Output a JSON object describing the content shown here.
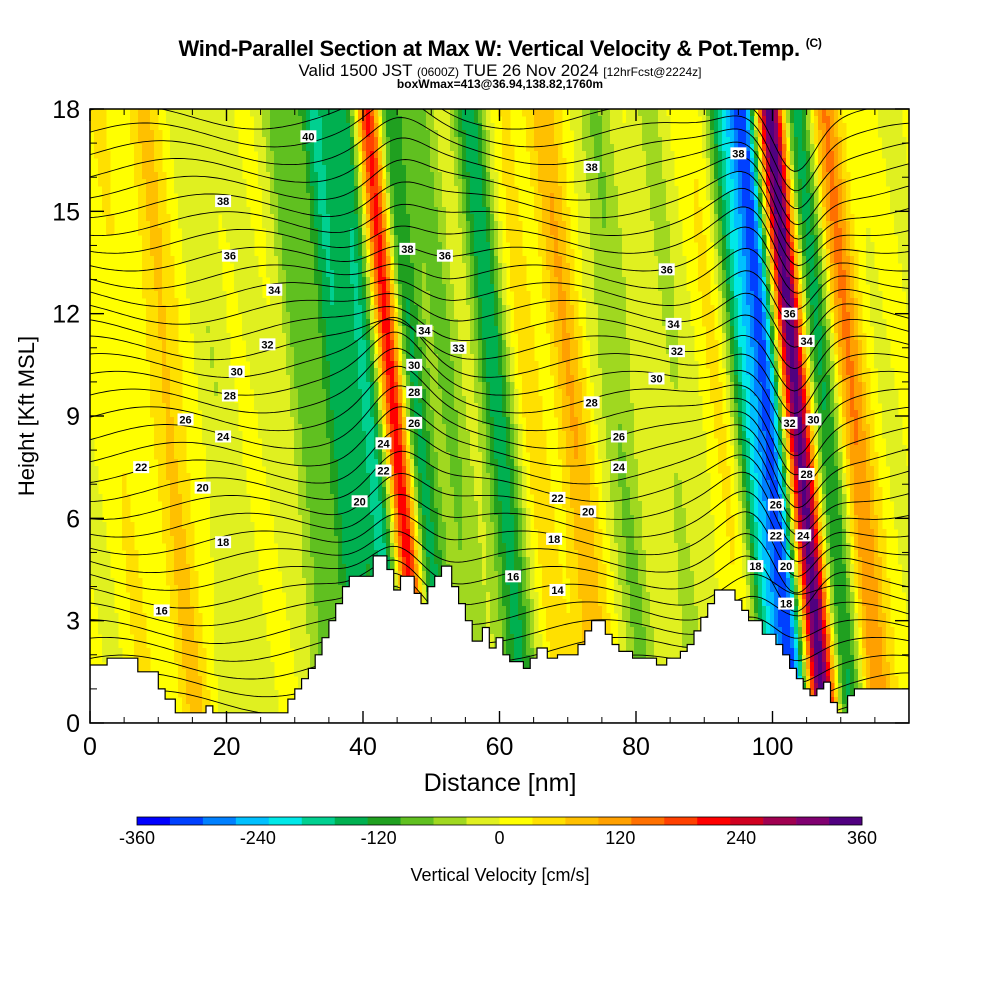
{
  "title": {
    "main": "Wind-Parallel Section at Max W: Vertical Velocity & Pot.Temp.",
    "main_suffix": "(C)",
    "valid_prefix": "Valid 1500 JST",
    "valid_utc": "(0600Z)",
    "valid_date": "TUE 26 Nov 2024",
    "forecast": "[12hrFcst@2224z]",
    "box_info": "boxWmax=413@36.94,138.82,1760m"
  },
  "chart_data": {
    "type": "heatmap",
    "xlabel": "Distance [nm]",
    "ylabel": "Height [Kft MSL]",
    "xlim": [
      0,
      120
    ],
    "ylim": [
      0,
      18
    ],
    "x_ticks": [
      0,
      20,
      40,
      60,
      80,
      100
    ],
    "y_ticks": [
      0,
      3,
      6,
      9,
      12,
      15,
      18
    ],
    "colorbar": {
      "label": "Vertical Velocity [cm/s]",
      "ticks": [
        -360,
        -240,
        -120,
        0,
        120,
        240,
        360
      ],
      "min": -360,
      "max": 360,
      "colors": [
        "#0000ff",
        "#0040ff",
        "#0080ff",
        "#00c0ff",
        "#00e8e8",
        "#00d090",
        "#00b050",
        "#20a020",
        "#60c020",
        "#a0d820",
        "#e0f020",
        "#ffff00",
        "#ffe000",
        "#ffc000",
        "#ffa000",
        "#ff7000",
        "#ff4000",
        "#ff0000",
        "#d00020",
        "#a00050",
        "#800070",
        "#500080"
      ]
    },
    "vertical_velocity_cores": [
      {
        "x": 6,
        "w": 35
      },
      {
        "x": 13,
        "w": 75
      },
      {
        "x": 20,
        "w": -25
      },
      {
        "x": 33,
        "w": -85
      },
      {
        "x": 38,
        "w": -160
      },
      {
        "x": 42.5,
        "w": -170
      },
      {
        "x": 46,
        "w": 260
      },
      {
        "x": 49,
        "w": -150
      },
      {
        "x": 54,
        "w": -70
      },
      {
        "x": 61,
        "w": -150
      },
      {
        "x": 66,
        "w": 45
      },
      {
        "x": 72,
        "w": 95
      },
      {
        "x": 79,
        "w": -70
      },
      {
        "x": 87,
        "w": -40
      },
      {
        "x": 94,
        "w": 40
      },
      {
        "x": 98,
        "w": -190
      },
      {
        "x": 101,
        "w": -270
      },
      {
        "x": 105,
        "w": 360
      },
      {
        "x": 109,
        "w": -150
      },
      {
        "x": 113,
        "w": 140
      }
    ],
    "theta_contour_labels": [
      {
        "text": "40",
        "x": 32,
        "y": 17.2
      },
      {
        "text": "38",
        "x": 19.5,
        "y": 15.3
      },
      {
        "text": "38",
        "x": 73.5,
        "y": 16.3
      },
      {
        "text": "38",
        "x": 95,
        "y": 16.7
      },
      {
        "text": "38",
        "x": 46.5,
        "y": 13.9
      },
      {
        "text": "36",
        "x": 20.5,
        "y": 13.7
      },
      {
        "text": "36",
        "x": 52,
        "y": 13.7
      },
      {
        "text": "36",
        "x": 84.5,
        "y": 13.3
      },
      {
        "text": "36",
        "x": 102.5,
        "y": 12
      },
      {
        "text": "34",
        "x": 27,
        "y": 12.7
      },
      {
        "text": "34",
        "x": 49,
        "y": 11.5
      },
      {
        "text": "34",
        "x": 85.5,
        "y": 11.7
      },
      {
        "text": "34",
        "x": 105,
        "y": 11.2
      },
      {
        "text": "33",
        "x": 54,
        "y": 11
      },
      {
        "text": "32",
        "x": 26,
        "y": 11.1
      },
      {
        "text": "32",
        "x": 86,
        "y": 10.9
      },
      {
        "text": "32",
        "x": 102.5,
        "y": 8.8
      },
      {
        "text": "30",
        "x": 21.5,
        "y": 10.3
      },
      {
        "text": "30",
        "x": 47.5,
        "y": 10.5
      },
      {
        "text": "30",
        "x": 83,
        "y": 10.1
      },
      {
        "text": "30",
        "x": 106,
        "y": 8.9
      },
      {
        "text": "28",
        "x": 20.5,
        "y": 9.6
      },
      {
        "text": "28",
        "x": 47.5,
        "y": 9.7
      },
      {
        "text": "28",
        "x": 73.5,
        "y": 9.4
      },
      {
        "text": "28",
        "x": 105,
        "y": 7.3
      },
      {
        "text": "26",
        "x": 14,
        "y": 8.9
      },
      {
        "text": "26",
        "x": 47.5,
        "y": 8.8
      },
      {
        "text": "26",
        "x": 77.5,
        "y": 8.4
      },
      {
        "text": "26",
        "x": 100.5,
        "y": 6.4
      },
      {
        "text": "24",
        "x": 19.5,
        "y": 8.4
      },
      {
        "text": "24",
        "x": 43,
        "y": 8.2
      },
      {
        "text": "24",
        "x": 77.5,
        "y": 7.5
      },
      {
        "text": "24",
        "x": 104.5,
        "y": 5.5
      },
      {
        "text": "22",
        "x": 7.5,
        "y": 7.5
      },
      {
        "text": "22",
        "x": 43,
        "y": 7.4
      },
      {
        "text": "22",
        "x": 68.5,
        "y": 6.6
      },
      {
        "text": "22",
        "x": 100.5,
        "y": 5.5
      },
      {
        "text": "20",
        "x": 16.5,
        "y": 6.9
      },
      {
        "text": "20",
        "x": 39.5,
        "y": 6.5
      },
      {
        "text": "20",
        "x": 73,
        "y": 6.2
      },
      {
        "text": "20",
        "x": 102,
        "y": 4.6
      },
      {
        "text": "18",
        "x": 19.5,
        "y": 5.3
      },
      {
        "text": "18",
        "x": 68,
        "y": 5.4
      },
      {
        "text": "18",
        "x": 97.5,
        "y": 4.6
      },
      {
        "text": "18",
        "x": 102,
        "y": 3.5
      },
      {
        "text": "16",
        "x": 10.5,
        "y": 3.3
      },
      {
        "text": "16",
        "x": 62,
        "y": 4.3
      },
      {
        "text": "14",
        "x": 68.5,
        "y": 3.9
      }
    ],
    "terrain": [
      [
        0,
        1.7
      ],
      [
        2.5,
        1.7
      ],
      [
        2.5,
        1.9
      ],
      [
        7,
        1.9
      ],
      [
        7,
        1.5
      ],
      [
        10,
        1.5
      ],
      [
        10,
        1.0
      ],
      [
        11,
        1.0
      ],
      [
        11,
        0.7
      ],
      [
        12.5,
        0.7
      ],
      [
        12.5,
        0.3
      ],
      [
        17,
        0.3
      ],
      [
        17,
        0.5
      ],
      [
        18,
        0.5
      ],
      [
        18,
        0.3
      ],
      [
        29,
        0.3
      ],
      [
        29,
        0.7
      ],
      [
        30,
        0.7
      ],
      [
        30,
        1.0
      ],
      [
        31,
        1.0
      ],
      [
        31,
        1.3
      ],
      [
        32,
        1.3
      ],
      [
        32,
        1.6
      ],
      [
        33,
        1.6
      ],
      [
        33,
        2.0
      ],
      [
        34,
        2.0
      ],
      [
        34,
        2.5
      ],
      [
        35,
        2.5
      ],
      [
        35,
        3.0
      ],
      [
        36,
        3.0
      ],
      [
        36,
        3.5
      ],
      [
        37,
        3.5
      ],
      [
        37,
        4.0
      ],
      [
        38,
        4.0
      ],
      [
        38,
        4.3
      ],
      [
        41.5,
        4.3
      ],
      [
        41.5,
        4.9
      ],
      [
        43.5,
        4.9
      ],
      [
        43.5,
        4.5
      ],
      [
        44.5,
        4.5
      ],
      [
        44.5,
        3.9
      ],
      [
        45.5,
        3.9
      ],
      [
        45.5,
        4.3
      ],
      [
        47.5,
        4.3
      ],
      [
        47.5,
        3.8
      ],
      [
        48.5,
        3.8
      ],
      [
        48.5,
        3.5
      ],
      [
        49.5,
        3.5
      ],
      [
        49.5,
        4.0
      ],
      [
        50.5,
        4.0
      ],
      [
        50.5,
        4.3
      ],
      [
        51.5,
        4.3
      ],
      [
        51.5,
        4.6
      ],
      [
        53,
        4.6
      ],
      [
        53,
        4.0
      ],
      [
        54,
        4.0
      ],
      [
        54,
        3.5
      ],
      [
        55,
        3.5
      ],
      [
        55,
        3.0
      ],
      [
        56,
        3.0
      ],
      [
        56,
        2.4
      ],
      [
        57.5,
        2.4
      ],
      [
        57.5,
        2.8
      ],
      [
        58.5,
        2.8
      ],
      [
        58.5,
        2.2
      ],
      [
        59.5,
        2.2
      ],
      [
        59.5,
        2.5
      ],
      [
        60.5,
        2.5
      ],
      [
        60.5,
        2.0
      ],
      [
        61.5,
        2.0
      ],
      [
        61.5,
        1.8
      ],
      [
        63.5,
        1.8
      ],
      [
        63.5,
        1.6
      ],
      [
        64.5,
        1.6
      ],
      [
        64.5,
        1.9
      ],
      [
        65.5,
        1.9
      ],
      [
        65.5,
        2.2
      ],
      [
        67,
        2.2
      ],
      [
        67,
        1.9
      ],
      [
        68.5,
        1.9
      ],
      [
        68.5,
        2.0
      ],
      [
        71.5,
        2.0
      ],
      [
        71.5,
        2.3
      ],
      [
        72.5,
        2.3
      ],
      [
        72.5,
        2.7
      ],
      [
        73.5,
        2.7
      ],
      [
        73.5,
        3.0
      ],
      [
        75.5,
        3.0
      ],
      [
        75.5,
        2.6
      ],
      [
        76.5,
        2.6
      ],
      [
        76.5,
        2.3
      ],
      [
        77.5,
        2.3
      ],
      [
        77.5,
        2.1
      ],
      [
        79.5,
        2.1
      ],
      [
        79.5,
        1.9
      ],
      [
        83,
        1.9
      ],
      [
        83,
        1.7
      ],
      [
        84.5,
        1.7
      ],
      [
        84.5,
        1.9
      ],
      [
        86.5,
        1.9
      ],
      [
        86.5,
        2.1
      ],
      [
        87.5,
        2.1
      ],
      [
        87.5,
        2.3
      ],
      [
        88.5,
        2.3
      ],
      [
        88.5,
        2.7
      ],
      [
        89.5,
        2.7
      ],
      [
        89.5,
        3.1
      ],
      [
        90.5,
        3.1
      ],
      [
        90.5,
        3.5
      ],
      [
        91.5,
        3.5
      ],
      [
        91.5,
        3.9
      ],
      [
        94.5,
        3.9
      ],
      [
        94.5,
        3.6
      ],
      [
        95.5,
        3.6
      ],
      [
        95.5,
        3.3
      ],
      [
        96.5,
        3.3
      ],
      [
        96.5,
        3.0
      ],
      [
        98.5,
        3.0
      ],
      [
        98.5,
        2.6
      ],
      [
        100.5,
        2.6
      ],
      [
        100.5,
        2.3
      ],
      [
        101.5,
        2.3
      ],
      [
        101.5,
        2.0
      ],
      [
        102.5,
        2.0
      ],
      [
        102.5,
        1.6
      ],
      [
        103.5,
        1.6
      ],
      [
        103.5,
        1.3
      ],
      [
        104.5,
        1.3
      ],
      [
        104.5,
        1.0
      ],
      [
        105.5,
        1.0
      ],
      [
        105.5,
        0.8
      ],
      [
        106.5,
        0.8
      ],
      [
        106.5,
        1.0
      ],
      [
        107.5,
        1.0
      ],
      [
        107.5,
        1.2
      ],
      [
        108.5,
        1.2
      ],
      [
        108.5,
        0.6
      ],
      [
        109.5,
        0.6
      ],
      [
        109.5,
        0.3
      ],
      [
        111,
        0.3
      ],
      [
        111,
        0.8
      ],
      [
        112,
        0.8
      ],
      [
        112,
        1.0
      ],
      [
        120,
        1.0
      ]
    ]
  }
}
